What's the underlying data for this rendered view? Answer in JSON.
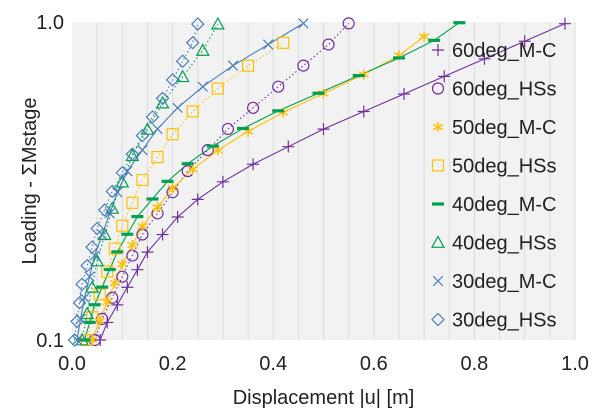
{
  "chart_data": {
    "type": "scatter",
    "xlabel": "Displacement |u| [m]",
    "ylabel": "Loading - ΣMstage",
    "xlim": [
      0.0,
      1.0
    ],
    "ylim": [
      0.1,
      1.0
    ],
    "y_scale": "log",
    "x_ticks": [
      "0.0",
      "0.2",
      "0.4",
      "0.6",
      "0.8",
      "1.0"
    ],
    "y_ticks": [
      "0.1",
      "1.0"
    ],
    "grid": "vertical",
    "legend_position": "right",
    "series": [
      {
        "name": "60deg_M-C",
        "color": "#7030a0",
        "marker": "plus",
        "lineStyle": "solid",
        "y_end": 0.988,
        "x": [
          0.056,
          0.07,
          0.09,
          0.11,
          0.13,
          0.15,
          0.18,
          0.21,
          0.25,
          0.3,
          0.36,
          0.43,
          0.5,
          0.58,
          0.66,
          0.74,
          0.82,
          0.9,
          0.98
        ]
      },
      {
        "name": "60deg_HSs",
        "color": "#7030a0",
        "marker": "circle",
        "lineStyle": "dotted",
        "y_end": 0.99,
        "x": [
          0.045,
          0.06,
          0.08,
          0.1,
          0.12,
          0.14,
          0.17,
          0.2,
          0.23,
          0.27,
          0.31,
          0.36,
          0.41,
          0.46,
          0.51,
          0.55
        ]
      },
      {
        "name": "50deg_M-C",
        "color": "#ffc000",
        "marker": "star",
        "lineStyle": "solid",
        "y_end": 0.9,
        "x": [
          0.04,
          0.055,
          0.07,
          0.085,
          0.1,
          0.12,
          0.14,
          0.17,
          0.2,
          0.24,
          0.29,
          0.35,
          0.42,
          0.5,
          0.58,
          0.65,
          0.7
        ]
      },
      {
        "name": "50deg_HSs",
        "color": "#ffc000",
        "marker": "square",
        "lineStyle": "dotted",
        "y_end": 0.86,
        "x": [
          0.03,
          0.04,
          0.055,
          0.07,
          0.085,
          0.1,
          0.12,
          0.14,
          0.17,
          0.2,
          0.24,
          0.29,
          0.35,
          0.42
        ]
      },
      {
        "name": "40deg_M-C",
        "color": "#00a050",
        "marker": "dash",
        "lineStyle": "solid",
        "y_end": 0.995,
        "x": [
          0.025,
          0.035,
          0.045,
          0.06,
          0.075,
          0.09,
          0.11,
          0.13,
          0.16,
          0.19,
          0.23,
          0.28,
          0.34,
          0.41,
          0.49,
          0.57,
          0.65,
          0.72,
          0.77
        ]
      },
      {
        "name": "40deg_HSs",
        "color": "#00a050",
        "marker": "triangle",
        "lineStyle": "dotted",
        "y_end": 0.985,
        "x": [
          0.02,
          0.03,
          0.04,
          0.05,
          0.065,
          0.08,
          0.1,
          0.12,
          0.15,
          0.18,
          0.22,
          0.26,
          0.29
        ]
      },
      {
        "name": "30deg_M-C",
        "color": "#4a7ebb",
        "marker": "x",
        "lineStyle": "solid",
        "y_end": 0.99,
        "x": [
          0.01,
          0.017,
          0.025,
          0.035,
          0.045,
          0.06,
          0.075,
          0.09,
          0.11,
          0.14,
          0.17,
          0.21,
          0.26,
          0.32,
          0.39,
          0.46
        ]
      },
      {
        "name": "30deg_HSs",
        "color": "#4a7ebb",
        "marker": "diamond",
        "lineStyle": "dotted",
        "y_end": 0.985,
        "x": [
          0.005,
          0.01,
          0.015,
          0.02,
          0.03,
          0.04,
          0.05,
          0.065,
          0.08,
          0.1,
          0.12,
          0.14,
          0.16,
          0.18,
          0.2,
          0.22,
          0.24,
          0.25
        ]
      }
    ]
  }
}
